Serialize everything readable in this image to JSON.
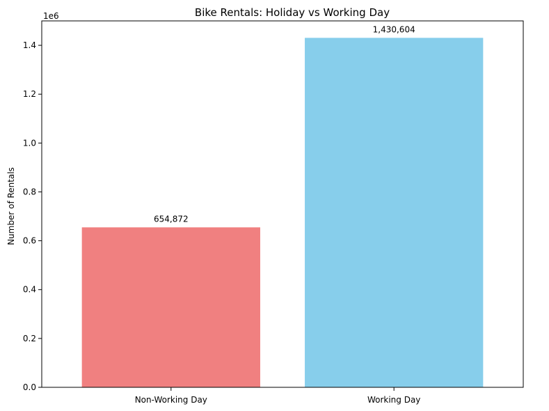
{
  "chart_data": {
    "type": "bar",
    "title": "Bike Rentals: Holiday vs Working Day",
    "xlabel": "",
    "ylabel": "Number of Rentals",
    "y_offset_label": "1e6",
    "categories": [
      "Non-Working Day",
      "Working Day"
    ],
    "values": [
      654872,
      1430604
    ],
    "value_labels": [
      "654,872",
      "1,430,604"
    ],
    "colors": [
      "#f08080",
      "#87ceeb"
    ],
    "ylim": [
      0,
      1500000
    ],
    "yticks": [
      0,
      200000,
      400000,
      600000,
      800000,
      1000000,
      1200000,
      1400000
    ],
    "ytick_labels": [
      "0.0",
      "0.2",
      "0.4",
      "0.6",
      "0.8",
      "1.0",
      "1.2",
      "1.4"
    ],
    "grid": false,
    "legend": "none"
  }
}
